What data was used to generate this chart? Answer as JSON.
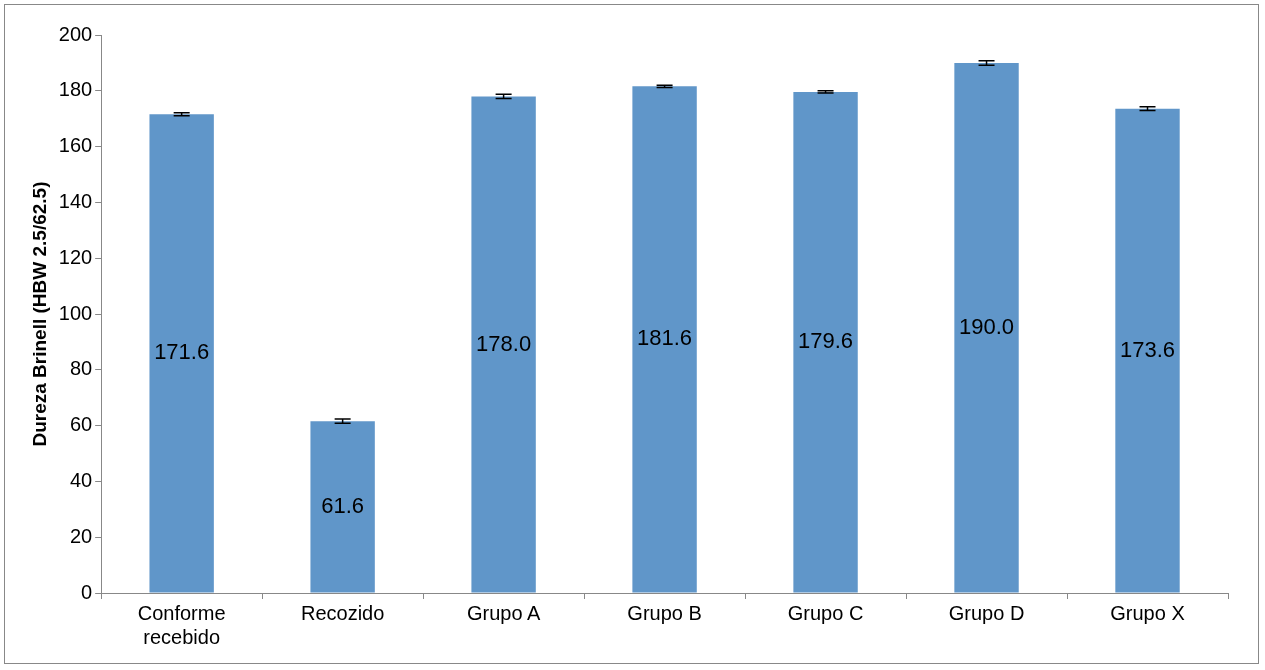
{
  "chart_data": {
    "type": "bar",
    "ylabel": "Dureza Brinell (HBW 2.5/62.5)",
    "categories": [
      "Conforme recebido",
      "Recozido",
      "Grupo A",
      "Grupo B",
      "Grupo C",
      "Grupo D",
      "Grupo X"
    ],
    "values": [
      171.6,
      61.6,
      178.0,
      181.6,
      179.6,
      190.0,
      173.6
    ],
    "errors": [
      0.5,
      0.8,
      0.8,
      0.4,
      0.4,
      0.8,
      0.7
    ],
    "color": "#6096c9",
    "ylim": [
      0,
      200
    ],
    "yticks": [
      0,
      20,
      40,
      60,
      80,
      100,
      120,
      140,
      160,
      180,
      200
    ],
    "value_labels": [
      "171.6",
      "61.6",
      "178.0",
      "181.6",
      "179.6",
      "190.0",
      "173.6"
    ],
    "grid": false,
    "legend": false
  }
}
